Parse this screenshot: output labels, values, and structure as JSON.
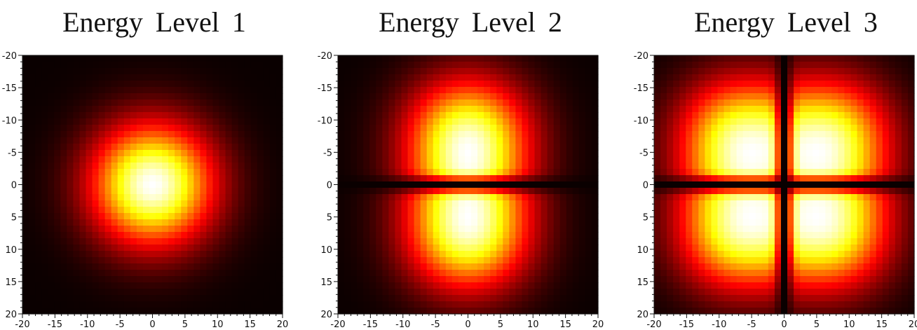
{
  "chart_data": [
    {
      "type": "heatmap",
      "title": "Energy Level 1",
      "colormap": "hot",
      "xlim": [
        -20,
        20
      ],
      "ylim": [
        20,
        -20
      ],
      "xticks": [
        -20,
        -15,
        -10,
        -5,
        0,
        5,
        10,
        15,
        20
      ],
      "yticks": [
        -20,
        -15,
        -10,
        -5,
        0,
        5,
        10,
        15,
        20
      ],
      "grid": false,
      "peaks": [
        {
          "x": 0,
          "y": 0
        }
      ],
      "node_lines": [],
      "xlabel": "",
      "ylabel": ""
    },
    {
      "type": "heatmap",
      "title": "Energy Level 2",
      "colormap": "hot",
      "xlim": [
        -20,
        20
      ],
      "ylim": [
        20,
        -20
      ],
      "xticks": [
        -20,
        -15,
        -10,
        -5,
        0,
        5,
        10,
        15,
        20
      ],
      "yticks": [
        -20,
        -15,
        -10,
        -5,
        0,
        5,
        10,
        15,
        20
      ],
      "grid": false,
      "peaks": [
        {
          "x": 0,
          "y": -7
        },
        {
          "x": 0,
          "y": 7
        }
      ],
      "node_lines": [
        "y=0"
      ],
      "xlabel": "",
      "ylabel": ""
    },
    {
      "type": "heatmap",
      "title": "Energy Level 3",
      "colormap": "hot",
      "xlim": [
        -20,
        20
      ],
      "ylim": [
        20,
        -20
      ],
      "xticks": [
        -20,
        -15,
        -10,
        -5,
        0,
        5,
        10,
        15,
        20
      ],
      "yticks": [
        -20,
        -15,
        -10,
        -5,
        0,
        5,
        10,
        15,
        20
      ],
      "grid": false,
      "peaks": [
        {
          "x": -7,
          "y": -7
        },
        {
          "x": 7,
          "y": -7
        },
        {
          "x": -7,
          "y": 7
        },
        {
          "x": 7,
          "y": 7
        }
      ],
      "node_lines": [
        "x=0",
        "y=0"
      ],
      "xlabel": "",
      "ylabel": ""
    }
  ]
}
